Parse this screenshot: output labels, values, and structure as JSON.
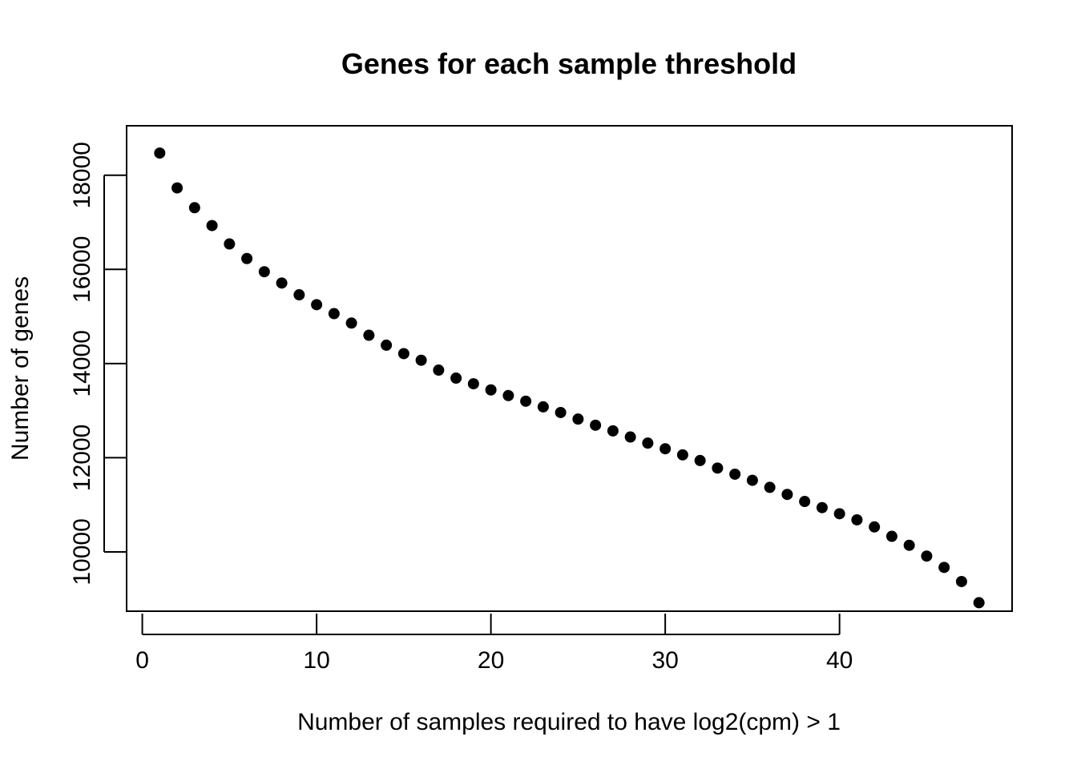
{
  "chart_data": {
    "type": "scatter",
    "title": "Genes for each sample threshold",
    "xlabel": "Number of samples required to have log2(cpm) > 1",
    "ylabel": "Number of genes",
    "xlim": [
      -0.9,
      49.9
    ],
    "ylim": [
      8740,
      19050
    ],
    "x_ticks": [
      0,
      10,
      20,
      30,
      40
    ],
    "y_ticks": [
      10000,
      12000,
      14000,
      16000,
      18000
    ],
    "grid": false,
    "legend": "none",
    "point_color": "#000000",
    "series": [
      {
        "x": [
          1,
          2,
          3,
          4,
          5,
          6,
          7,
          8,
          9,
          10,
          11,
          12,
          13,
          14,
          15,
          16,
          17,
          18,
          19,
          20,
          21,
          22,
          23,
          24,
          25,
          26,
          27,
          28,
          29,
          30,
          31,
          32,
          33,
          34,
          35,
          36,
          37,
          38,
          39,
          40,
          41,
          42,
          43,
          44,
          45,
          46,
          47,
          48
        ],
        "y": [
          18470,
          17730,
          17310,
          16930,
          16540,
          16230,
          15950,
          15710,
          15460,
          15250,
          15060,
          14860,
          14600,
          14390,
          14210,
          14070,
          13860,
          13690,
          13570,
          13440,
          13320,
          13200,
          13080,
          12960,
          12820,
          12690,
          12570,
          12440,
          12310,
          12190,
          12060,
          11940,
          11780,
          11650,
          11520,
          11370,
          11220,
          11070,
          10940,
          10810,
          10680,
          10530,
          10330,
          10140,
          9910,
          9670,
          9370,
          8920
        ]
      }
    ]
  }
}
